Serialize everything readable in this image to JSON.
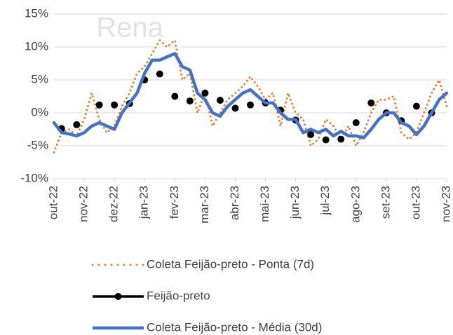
{
  "chart_data": {
    "type": "line",
    "watermark": "Rena",
    "categories": [
      "out-22",
      null,
      null,
      null,
      "nov-22",
      null,
      null,
      null,
      "dez-22",
      null,
      null,
      null,
      "jan-23",
      null,
      null,
      null,
      "fev-23",
      null,
      null,
      null,
      "mar-23",
      null,
      null,
      null,
      "abr-23",
      null,
      null,
      null,
      "mai-23",
      null,
      null,
      null,
      "jun-23",
      null,
      null,
      null,
      "jul-23",
      null,
      null,
      null,
      "ago-23",
      null,
      null,
      null,
      "set-23",
      null,
      null,
      null,
      "out-23",
      null,
      null,
      null,
      "nov-23"
    ],
    "series": [
      {
        "name": "Coleta Feijão-preto - Ponta (7d)",
        "color": "#ED7D31",
        "style": "dotted",
        "values": [
          -6,
          -3,
          -2.5,
          -3.5,
          -1,
          3,
          -1,
          -3,
          -2,
          1,
          3,
          6,
          7,
          9,
          11,
          10,
          11,
          5,
          6,
          0,
          3,
          -2,
          0,
          2,
          3,
          4,
          5.5,
          4,
          2,
          3,
          -2,
          3,
          0,
          -1,
          -5,
          -4,
          -1,
          -2,
          -4,
          -2,
          -5,
          -3,
          0,
          2,
          2,
          2.5,
          -3,
          -4,
          -3,
          0,
          3,
          5,
          1
        ]
      },
      {
        "name": "Feijão-preto",
        "color": "#000000",
        "style": "markers",
        "values": [
          null,
          -2.4,
          null,
          -1.8,
          null,
          null,
          1.2,
          null,
          1.2,
          null,
          1.4,
          null,
          5,
          null,
          5.9,
          null,
          2.5,
          null,
          1.8,
          null,
          3,
          null,
          1.9,
          null,
          0.7,
          null,
          1.2,
          null,
          1.5,
          null,
          0.4,
          null,
          -1.1,
          null,
          -3.3,
          null,
          -4.1,
          null,
          -4,
          null,
          -1.5,
          null,
          1.5,
          null,
          0,
          null,
          -1.2,
          null,
          1,
          null,
          0,
          null,
          null
        ]
      },
      {
        "name": "Coleta Feijão-preto - Média (30d)",
        "color": "#4472C4",
        "style": "line",
        "values": [
          -1.5,
          -3,
          -3.2,
          -3.5,
          -3,
          -2,
          -1.5,
          -2,
          -2.5,
          0,
          1.5,
          3,
          6,
          8,
          8,
          8.5,
          9,
          7,
          6.5,
          3,
          2,
          0,
          -0.5,
          1,
          2,
          3,
          3.5,
          2.5,
          1.5,
          1.5,
          0,
          -1,
          -1,
          -3,
          -2.5,
          -3,
          -2.5,
          -3.5,
          -2.8,
          -3.5,
          -3.5,
          -3.8,
          -2.5,
          -1,
          0,
          0,
          -1.5,
          -2,
          -3.3,
          -2,
          0,
          2,
          3
        ]
      }
    ],
    "ylim": [
      -10,
      15
    ],
    "yticks": [
      {
        "value": -10,
        "label": "-10%"
      },
      {
        "value": -5,
        "label": "-5%"
      },
      {
        "value": 0,
        "label": "0%"
      },
      {
        "value": 5,
        "label": "5%"
      },
      {
        "value": 10,
        "label": "10%"
      },
      {
        "value": 15,
        "label": "15%"
      }
    ],
    "grid": true
  }
}
